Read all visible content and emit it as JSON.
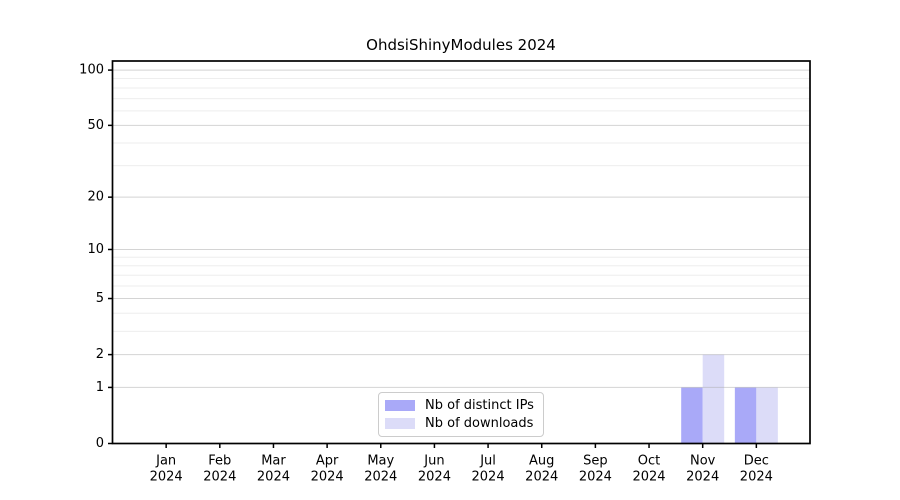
{
  "figure": {
    "background": "#ffffff",
    "text_color": "#000000",
    "axis_color": "#000000"
  },
  "chart_data": {
    "type": "bar",
    "title": "OhdsiShinyModules 2024",
    "categories": [
      "Jan",
      "Feb",
      "Mar",
      "Apr",
      "May",
      "Jun",
      "Jul",
      "Aug",
      "Sep",
      "Oct",
      "Nov",
      "Dec"
    ],
    "x_tick_year": "2024",
    "series": [
      {
        "name": "Nb of distinct IPs",
        "color": "#a9a9f8",
        "values": [
          0,
          0,
          0,
          0,
          0,
          0,
          0,
          0,
          0,
          0,
          1,
          1
        ]
      },
      {
        "name": "Nb of downloads",
        "color": "#dcdcf8",
        "values": [
          0,
          0,
          0,
          0,
          0,
          0,
          0,
          0,
          0,
          0,
          2,
          1
        ]
      }
    ],
    "xlabel": "",
    "ylabel": "",
    "yscale": "log1p",
    "ylim": [
      0,
      112
    ],
    "y_major_ticks": [
      0,
      1,
      2,
      5,
      10,
      20,
      50,
      100
    ],
    "y_minor_gridlines": [
      3,
      4,
      6,
      7,
      8,
      9,
      30,
      40,
      60,
      70,
      80,
      90
    ],
    "grid": "horizontal",
    "grid_major_color": "rgba(176,176,176,0.55)",
    "grid_minor_color": "rgba(176,176,176,0.22)",
    "legend_position": "lower-center-inside"
  }
}
